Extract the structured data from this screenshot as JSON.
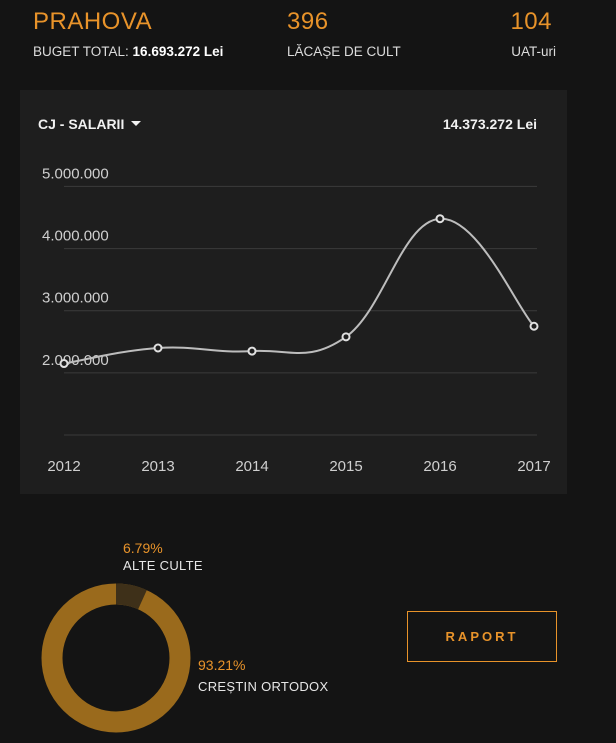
{
  "header": {
    "county": "PRAHOVA",
    "budget_label": "BUGET TOTAL:",
    "budget_value": "16.693.272 Lei",
    "worship_count": "396",
    "worship_label": "LĂCAȘE DE CULT",
    "uat_count": "104",
    "uat_label": "UAT-uri"
  },
  "card": {
    "category": "CJ - SALARII",
    "total": "14.373.272 Lei"
  },
  "chart_data": {
    "type": "line",
    "x": [
      "2012",
      "2013",
      "2014",
      "2015",
      "2016",
      "2017"
    ],
    "series": [
      {
        "values": [
          2150000,
          2400000,
          2350000,
          2580000,
          4480000,
          2750000
        ]
      }
    ],
    "ytick_values": [
      2000000,
      3000000,
      4000000,
      5000000
    ],
    "ytick_labels": [
      "2.000.000",
      "3.000.000",
      "4.000.000",
      "5.000.000"
    ],
    "ylim": [
      1000000,
      5200000
    ],
    "grid": true,
    "colors": {
      "line": "#bdbdbd",
      "grid": "#3b3b3b",
      "text": "#cfcfcf"
    }
  },
  "distribution": {
    "items": [
      {
        "percent": "6.79%",
        "label": "ALTE CULTE",
        "value": 6.79
      },
      {
        "percent": "93.21%",
        "label": "CREȘTIN ORTODOX",
        "value": 93.21
      }
    ],
    "colors": {
      "major": "#9a6a1c",
      "minor": "#3e3019"
    }
  },
  "actions": {
    "report_label": "RAPORT"
  },
  "theme": {
    "accent": "#e8932a",
    "background": "#141414",
    "panel": "#1e1e1e"
  }
}
